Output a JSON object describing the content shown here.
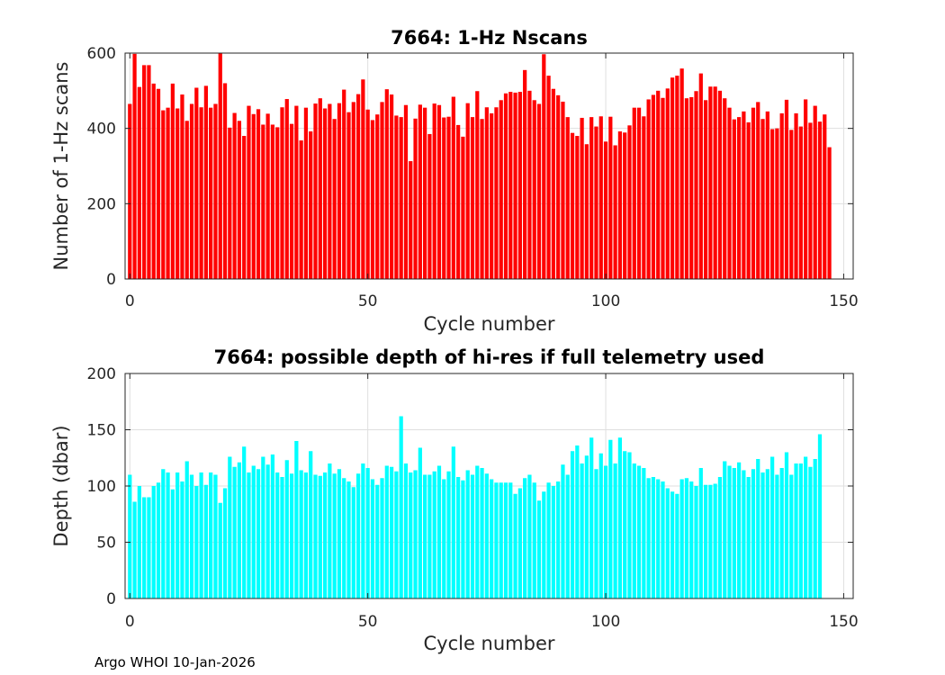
{
  "chart_data": [
    {
      "type": "bar",
      "title": "7664: 1-Hz Nscans",
      "xlabel": "Cycle number",
      "ylabel": "Number of 1-Hz scans",
      "xlim": [
        -1,
        152
      ],
      "ylim": [
        0,
        600
      ],
      "xticks": [
        "0",
        "50",
        "100",
        "150"
      ],
      "yticks": [
        "0",
        "200",
        "400",
        "600"
      ],
      "grid": true,
      "color": "#ff0000",
      "x_start": 0,
      "values": [
        465,
        598,
        510,
        568,
        568,
        519,
        505,
        448,
        455,
        519,
        453,
        490,
        420,
        465,
        508,
        456,
        513,
        455,
        465,
        608,
        520,
        402,
        441,
        420,
        380,
        460,
        438,
        451,
        410,
        439,
        410,
        403,
        456,
        478,
        412,
        460,
        368,
        455,
        392,
        466,
        480,
        453,
        465,
        425,
        467,
        503,
        443,
        470,
        491,
        530,
        450,
        422,
        437,
        470,
        504,
        490,
        434,
        430,
        462,
        313,
        426,
        463,
        455,
        385,
        466,
        462,
        429,
        431,
        484,
        409,
        378,
        467,
        430,
        499,
        425,
        456,
        440,
        456,
        475,
        493,
        497,
        495,
        497,
        555,
        500,
        475,
        465,
        597,
        540,
        505,
        488,
        471,
        430,
        388,
        380,
        428,
        358,
        430,
        405,
        432,
        365,
        431,
        355,
        392,
        389,
        408,
        455,
        455,
        432,
        477,
        489,
        500,
        481,
        506,
        535,
        540,
        559,
        480,
        483,
        499,
        546,
        475,
        511,
        511,
        500,
        480,
        455,
        424,
        430,
        445,
        416,
        455,
        470,
        425,
        445,
        398,
        400,
        440,
        476,
        396,
        440,
        405,
        477,
        415,
        460,
        418,
        437,
        350
      ]
    },
    {
      "type": "bar",
      "title": "7664: possible depth of hi-res if full telemetry used",
      "xlabel": "Cycle number",
      "ylabel": "Depth (dbar)",
      "xlim": [
        -1,
        152
      ],
      "ylim": [
        0,
        200
      ],
      "xticks": [
        "0",
        "50",
        "100",
        "150"
      ],
      "yticks": [
        "0",
        "50",
        "100",
        "150",
        "200"
      ],
      "grid": true,
      "color": "#00ffff",
      "x_start": 0,
      "values": [
        110,
        86,
        100,
        90,
        90,
        100,
        103,
        115,
        112,
        97,
        112,
        104,
        122,
        110,
        100,
        112,
        101,
        112,
        110,
        85,
        98,
        126,
        117,
        121,
        135,
        112,
        118,
        115,
        126,
        119,
        128,
        112,
        108,
        123,
        111,
        140,
        114,
        112,
        131,
        110,
        109,
        112,
        120,
        111,
        115,
        107,
        104,
        99,
        111,
        120,
        116,
        106,
        101,
        107,
        118,
        117,
        113,
        162,
        120,
        112,
        114,
        134,
        110,
        110,
        113,
        118,
        106,
        113,
        135,
        108,
        105,
        114,
        110,
        118,
        116,
        111,
        106,
        103,
        103,
        103,
        103,
        93,
        98,
        107,
        110,
        103,
        87,
        95,
        103,
        100,
        104,
        119,
        110,
        131,
        136,
        120,
        127,
        143,
        115,
        129,
        118,
        141,
        120,
        143,
        131,
        130,
        120,
        118,
        116,
        107,
        108,
        106,
        104,
        98,
        95,
        93,
        106,
        107,
        104,
        100,
        116,
        101,
        101,
        102,
        108,
        122,
        118,
        116,
        121,
        114,
        108,
        115,
        124,
        112,
        115,
        126,
        110,
        116,
        130,
        110,
        120,
        120,
        126,
        117,
        124,
        146
      ]
    }
  ],
  "footer": {
    "label": "Argo WHOI 10-Jan-2026"
  }
}
